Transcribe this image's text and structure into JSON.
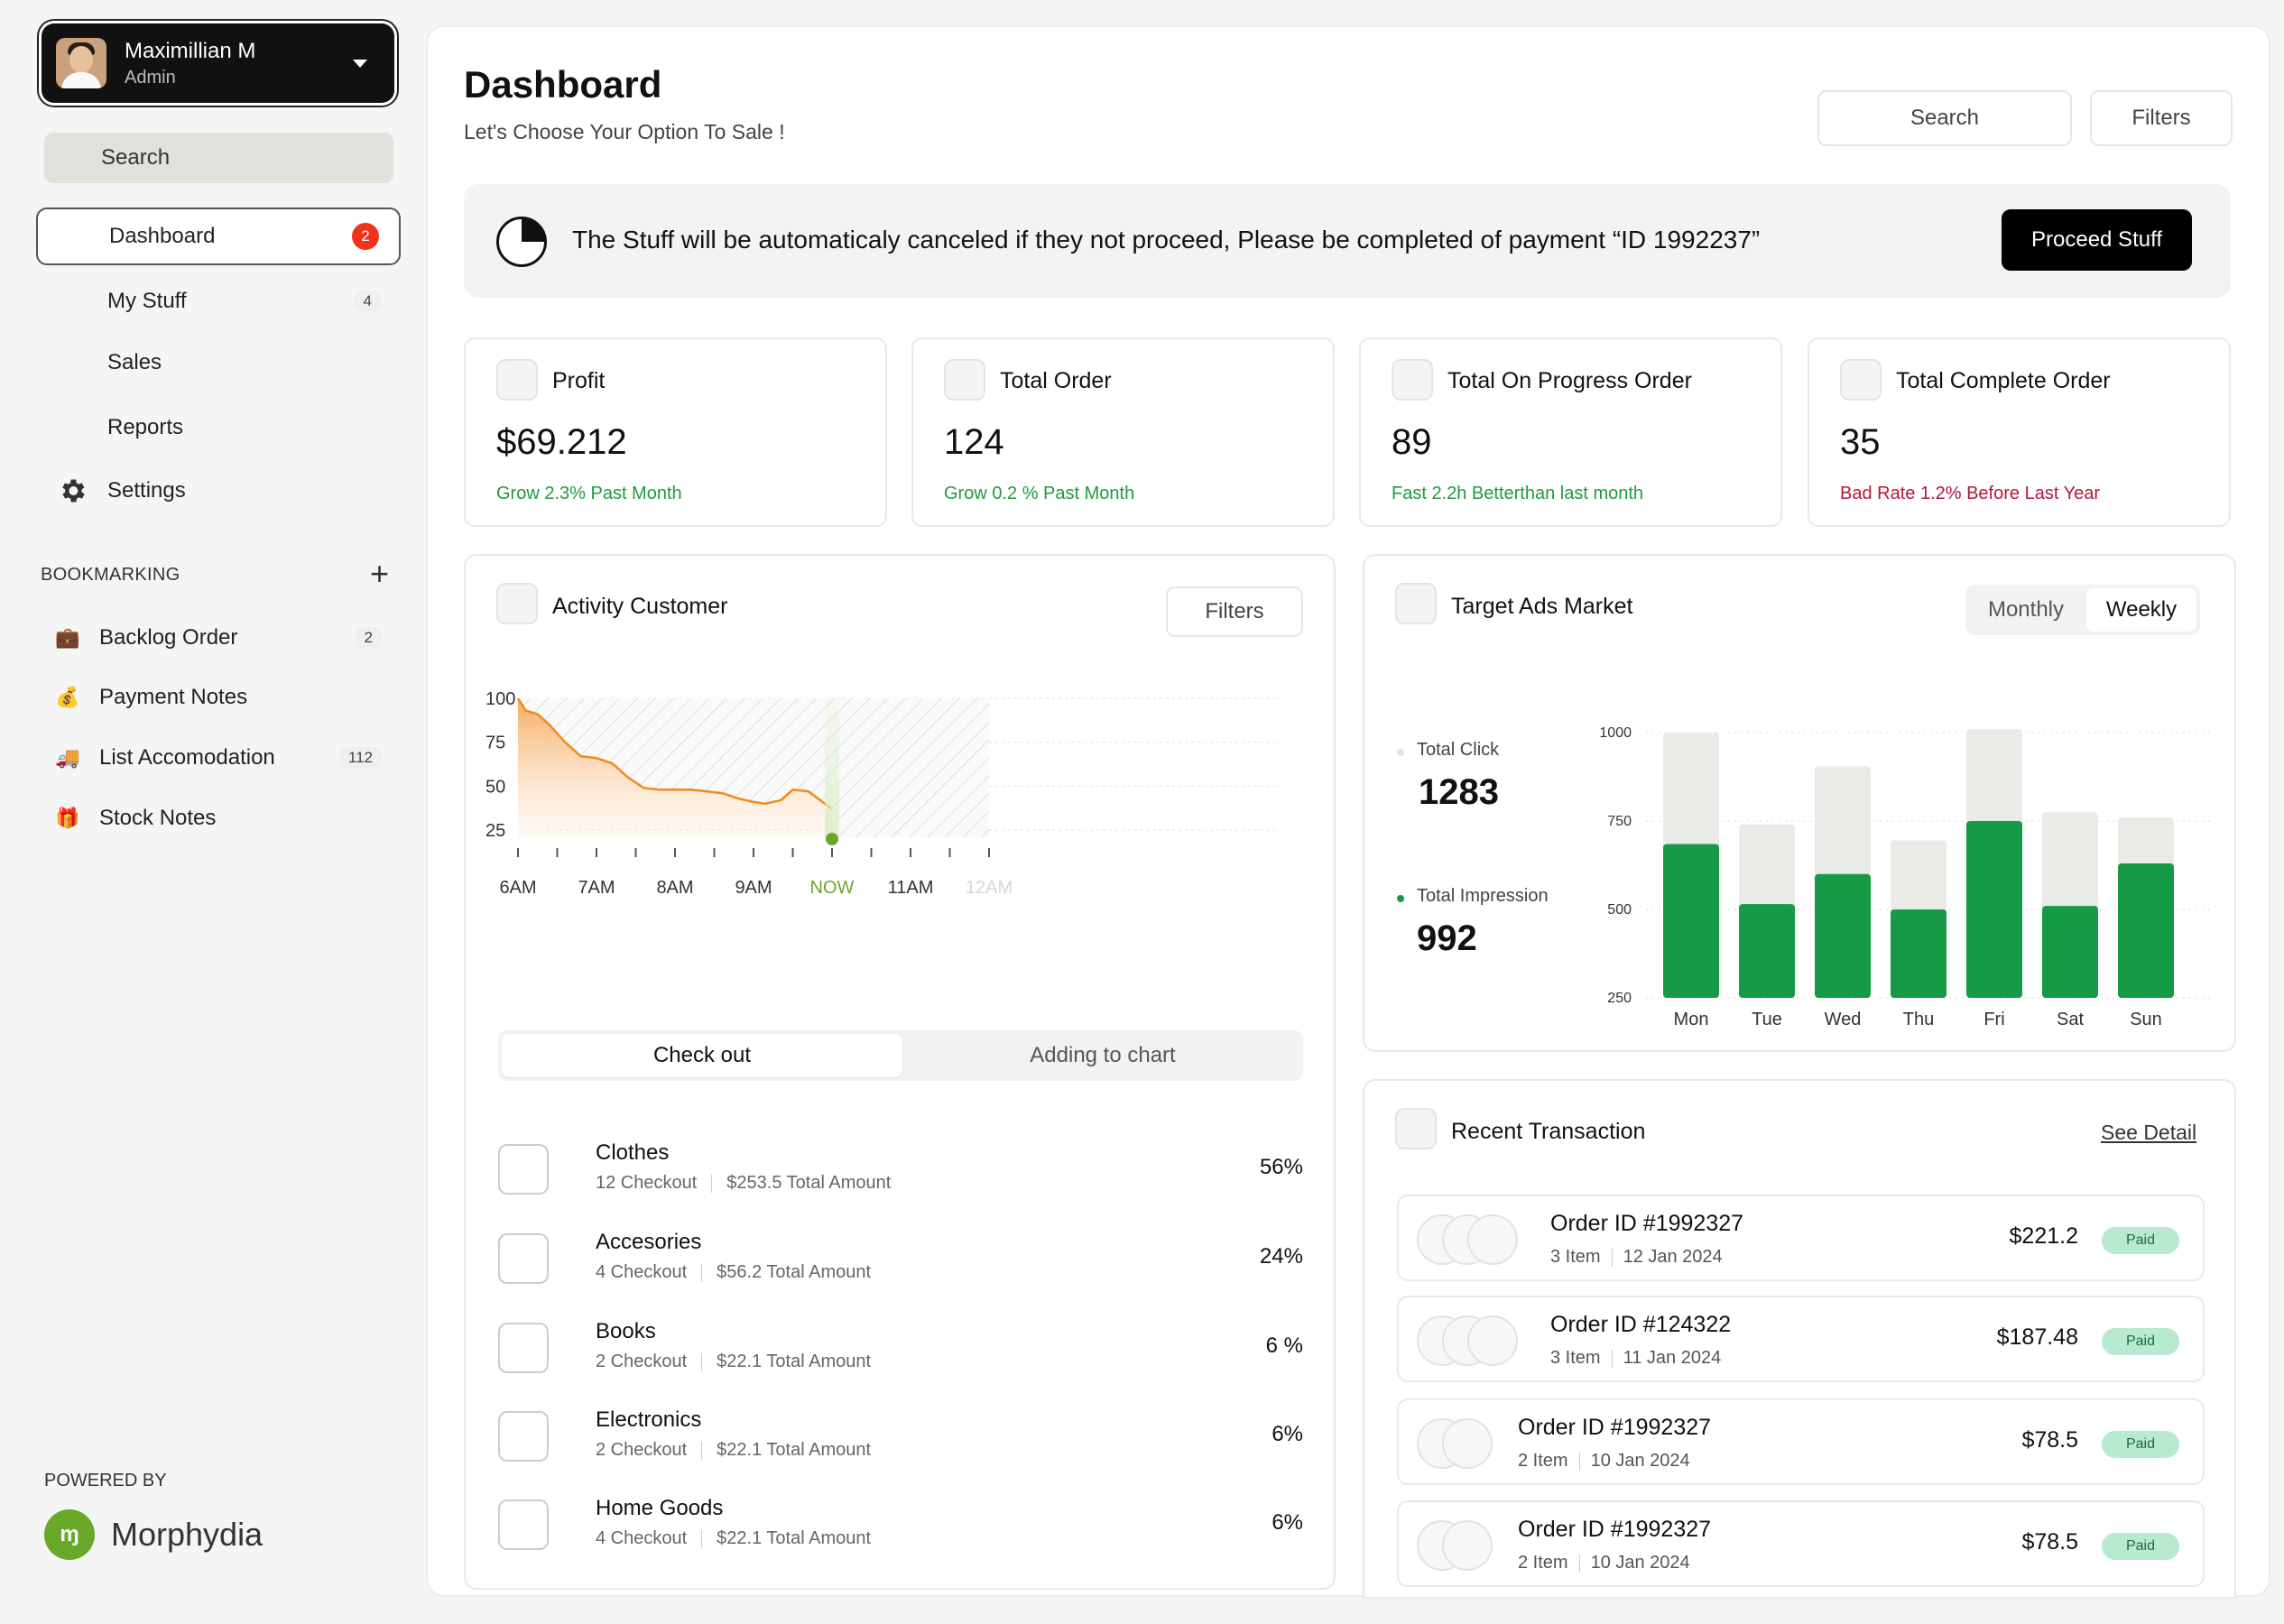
{
  "user": {
    "name": "Maximillian M",
    "role": "Admin"
  },
  "sidebar": {
    "search_label": "Search",
    "nav": [
      {
        "label": "Dashboard",
        "badge": "2"
      },
      {
        "label": "My Stuff",
        "badge": "4"
      },
      {
        "label": "Sales",
        "badge": ""
      },
      {
        "label": "Reports",
        "badge": ""
      },
      {
        "label": "Settings",
        "badge": ""
      }
    ],
    "bookmarking_title": "BOOKMARKING",
    "bookmarks": [
      {
        "label": "Backlog Order",
        "icon": "briefcase-icon",
        "badge": "2"
      },
      {
        "label": "Payment Notes",
        "icon": "money-bag-icon",
        "badge": ""
      },
      {
        "label": "List Accomodation",
        "icon": "truck-icon",
        "badge": "112"
      },
      {
        "label": "Stock Notes",
        "icon": "gift-icon",
        "badge": ""
      }
    ],
    "powered_by": "POWERED BY",
    "brand": "Morphydia"
  },
  "header": {
    "title": "Dashboard",
    "subtitle": "Let's Choose Your Option To Sale !",
    "search_label": "Search",
    "filters_label": "Filters"
  },
  "alert": {
    "message": "The Stuff will be automaticaly canceled if they not proceed, Please be completed of payment “ID 1992237”",
    "button": "Proceed Stuff"
  },
  "stats": [
    {
      "label": "Profit",
      "value": "$69.212",
      "note": "Grow 2.3% Past Month",
      "tone": "green"
    },
    {
      "label": "Total Order",
      "value": "124",
      "note": "Grow 0.2 % Past Month",
      "tone": "green"
    },
    {
      "label": "Total On Progress Order",
      "value": "89",
      "note": "Fast 2.2h Betterthan last month",
      "tone": "green"
    },
    {
      "label": "Total Complete Order",
      "value": "35",
      "note": "Bad Rate 1.2% Before Last Year",
      "tone": "red"
    }
  ],
  "activity": {
    "title": "Activity Customer",
    "filters_label": "Filters",
    "tabs": [
      "Check out",
      "Adding to chart"
    ],
    "categories": [
      {
        "name": "Clothes",
        "checkout": "12 Checkout",
        "amount": "$253.5 Total Amount",
        "pct": "56%"
      },
      {
        "name": "Accesories",
        "checkout": "4 Checkout",
        "amount": "$56.2 Total Amount",
        "pct": "24%"
      },
      {
        "name": "Books",
        "checkout": "2 Checkout",
        "amount": "$22.1 Total Amount",
        "pct": "6 %"
      },
      {
        "name": "Electronics",
        "checkout": "2 Checkout",
        "amount": "$22.1 Total Amount",
        "pct": "6%"
      },
      {
        "name": "Home Goods",
        "checkout": "4 Checkout",
        "amount": "$22.1 Total Amount",
        "pct": "6%"
      }
    ]
  },
  "target": {
    "title": "Target Ads Market",
    "periods": [
      "Monthly",
      "Weekly"
    ],
    "total_click_label": "Total Click",
    "total_click": "1283",
    "total_impression_label": "Total Impression",
    "total_impression": "992"
  },
  "recent": {
    "title": "Recent Transaction",
    "see_detail": "See Detail",
    "transactions": [
      {
        "id": "Order ID #1992327",
        "items": "3 Item",
        "date": "12 Jan 2024",
        "amount": "$221.2",
        "status": "Paid",
        "avatars": 3
      },
      {
        "id": "Order ID #124322",
        "items": "3 Item",
        "date": "11 Jan 2024",
        "amount": "$187.48",
        "status": "Paid",
        "avatars": 3
      },
      {
        "id": "Order ID #1992327",
        "items": "2 Item",
        "date": "10 Jan 2024",
        "amount": "$78.5",
        "status": "Paid",
        "avatars": 2
      },
      {
        "id": "Order ID #1992327",
        "items": "2 Item",
        "date": "10 Jan 2024",
        "amount": "$78.5",
        "status": "Paid",
        "avatars": 2
      }
    ]
  },
  "colors": {
    "accent": "#169a45",
    "accent_light": "#e9ebe7",
    "area": "#f5a24b",
    "now": "#6ba82a",
    "alert_button": "#000000",
    "negative": "#b5173a"
  },
  "chart_data": [
    {
      "type": "area",
      "x_ticks": [
        "6AM",
        "7AM",
        "8AM",
        "9AM",
        "NOW",
        "11AM",
        "12AM"
      ],
      "y_ticks": [
        100,
        75,
        50,
        25
      ],
      "ylim": [
        25,
        100
      ],
      "now_index": 4,
      "series": [
        {
          "x": [
            6.0,
            6.1,
            6.25,
            6.4,
            6.6,
            6.8,
            7.0,
            7.2,
            7.4,
            7.6,
            7.8,
            8.0,
            8.2,
            8.4,
            8.6,
            8.8,
            9.0,
            9.15,
            9.35,
            9.5,
            9.7,
            9.85,
            10.0
          ],
          "y": [
            100,
            93,
            91,
            85,
            75,
            67,
            66,
            63,
            55,
            49,
            48,
            48,
            48,
            47,
            46,
            43,
            41,
            40,
            42,
            48,
            47,
            42,
            37
          ]
        }
      ]
    },
    {
      "type": "bar",
      "categories": [
        "Mon",
        "Tue",
        "Wed",
        "Thu",
        "Fri",
        "Sat",
        "Sun"
      ],
      "ylim": [
        250,
        1000
      ],
      "y_ticks": [
        1000,
        750,
        500,
        250
      ],
      "series": [
        {
          "values": [
            685,
            515,
            600,
            500,
            750,
            510,
            630
          ]
        },
        {
          "values": [
            1000,
            740,
            905,
            695,
            1030,
            775,
            760
          ]
        }
      ]
    }
  ]
}
